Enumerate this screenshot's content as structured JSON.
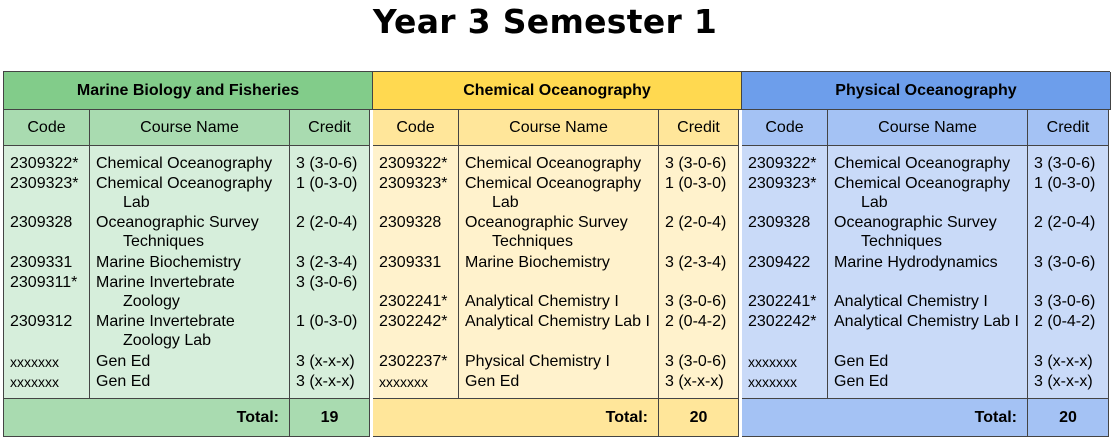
{
  "title": "Year 3 Semester 1",
  "col_headers": {
    "code": "Code",
    "name": "Course Name",
    "credit": "Credit"
  },
  "total_label": "Total:",
  "programs": [
    {
      "name": "Marine Biology and Fisheries",
      "colors": {
        "header": "#82cc8a",
        "subheader": "#a9dbb0",
        "body": "#d6eedb"
      },
      "total": "19",
      "rows": [
        {
          "code": "2309322*",
          "name": "Chemical Oceanography",
          "name2": "",
          "credit": "3 (3-0-6)"
        },
        {
          "code": "2309323*",
          "name": "Chemical Oceanography",
          "name2": "Lab",
          "credit": "1 (0-3-0)"
        },
        {
          "code": "2309328",
          "name": "Oceanographic Survey",
          "name2": "Techniques",
          "credit": "2 (2-0-4)"
        },
        {
          "code": "2309331",
          "name": "Marine Biochemistry",
          "name2": "",
          "credit": "3 (2-3-4)"
        },
        {
          "code": "2309311*",
          "name": "Marine Invertebrate",
          "name2": "Zoology",
          "credit": "3 (3-0-6)"
        },
        {
          "code": "2309312",
          "name": "Marine Invertebrate",
          "name2": "Zoology Lab",
          "credit": "1 (0-3-0)"
        },
        {
          "code": "xxxxxxx",
          "name": "Gen Ed",
          "name2": "",
          "credit": "3 (x-x-x)"
        },
        {
          "code": "xxxxxxx",
          "name": "Gen Ed",
          "name2": "",
          "credit": "3 (x-x-x)"
        }
      ]
    },
    {
      "name": "Chemical Oceanography",
      "colors": {
        "header": "#ffd950",
        "subheader": "#ffe69a",
        "body": "#fff2cc"
      },
      "total": "20",
      "rows": [
        {
          "code": "2309322*",
          "name": "Chemical Oceanography",
          "name2": "",
          "credit": "3 (3-0-6)"
        },
        {
          "code": "2309323*",
          "name": "Chemical Oceanography",
          "name2": "Lab",
          "credit": "1 (0-3-0)"
        },
        {
          "code": "2309328",
          "name": "Oceanographic Survey",
          "name2": "Techniques",
          "credit": "2 (2-0-4)"
        },
        {
          "code": "2309331",
          "name": "Marine Biochemistry",
          "name2": "",
          "credit": "3 (2-3-4)"
        },
        {
          "code": "2302241*",
          "name": "Analytical Chemistry I",
          "name2": "",
          "credit": "3 (3-0-6)"
        },
        {
          "code": "2302242*",
          "name": "Analytical Chemistry Lab I",
          "name2": "",
          "credit": "2 (0-4-2)"
        },
        {
          "code": "2302237*",
          "name": "Physical Chemistry I",
          "name2": "",
          "credit": "3 (3-0-6)"
        },
        {
          "code": "xxxxxxx",
          "name": "Gen Ed",
          "name2": "",
          "credit": "3 (x-x-x)"
        }
      ]
    },
    {
      "name": "Physical Oceanography",
      "colors": {
        "header": "#6d9eeb",
        "subheader": "#a4c2f4",
        "body": "#c9daf8"
      },
      "total": "20",
      "rows": [
        {
          "code": "2309322*",
          "name": "Chemical Oceanography",
          "name2": "",
          "credit": "3 (3-0-6)"
        },
        {
          "code": "2309323*",
          "name": "Chemical Oceanography",
          "name2": "Lab",
          "credit": "1 (0-3-0)"
        },
        {
          "code": "2309328",
          "name": "Oceanographic Survey",
          "name2": "Techniques",
          "credit": "2 (2-0-4)"
        },
        {
          "code": "2309422",
          "name": "Marine Hydrodynamics",
          "name2": "",
          "credit": "3 (3-0-6)"
        },
        {
          "code": "2302241*",
          "name": "Analytical Chemistry I",
          "name2": "",
          "credit": "3 (3-0-6)"
        },
        {
          "code": "2302242*",
          "name": "Analytical Chemistry Lab I",
          "name2": "",
          "credit": "2 (0-4-2)"
        },
        {
          "code": "xxxxxxx",
          "name": "Gen Ed",
          "name2": "",
          "credit": "3 (x-x-x)"
        },
        {
          "code": "xxxxxxx",
          "name": "Gen Ed",
          "name2": "",
          "credit": "3 (x-x-x)"
        }
      ]
    }
  ]
}
